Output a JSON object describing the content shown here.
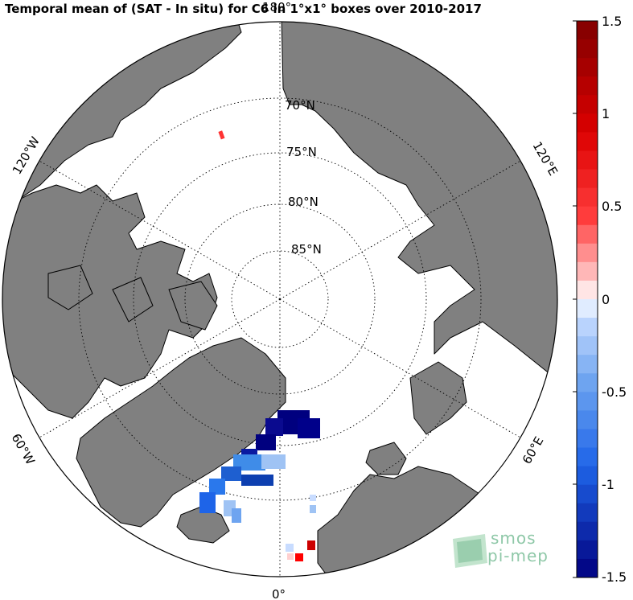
{
  "title": "Temporal mean of (SAT - In situ) for C6 in 1°x1° boxes over 2010-2017",
  "map": {
    "projection": "north polar stereographic",
    "land_color": "#808080",
    "ocean_color": "#ffffff",
    "lat_labels": [
      "70°N",
      "75°N",
      "80°N",
      "85°N"
    ],
    "lon_labels": {
      "top": "180°",
      "left_upper": "120°W",
      "right_upper": "120°E",
      "left_lower": "60°W",
      "right_lower": "60°E",
      "bottom": "0°"
    }
  },
  "colorbar": {
    "min": -1.5,
    "max": 1.5,
    "tick_labels": [
      "1.5",
      "1",
      "0.5",
      "0",
      "-0.5",
      "-1",
      "-1.5"
    ],
    "colors": {
      "max": "#800000",
      "high": "#ff0000",
      "low_pos": "#ffd0d0",
      "zero": "#ffffff",
      "low_neg": "#c8dcff",
      "neg": "#1e78ff",
      "min": "#00007f"
    }
  },
  "logo": {
    "line1": "smos",
    "line2": "pi-mep"
  }
}
